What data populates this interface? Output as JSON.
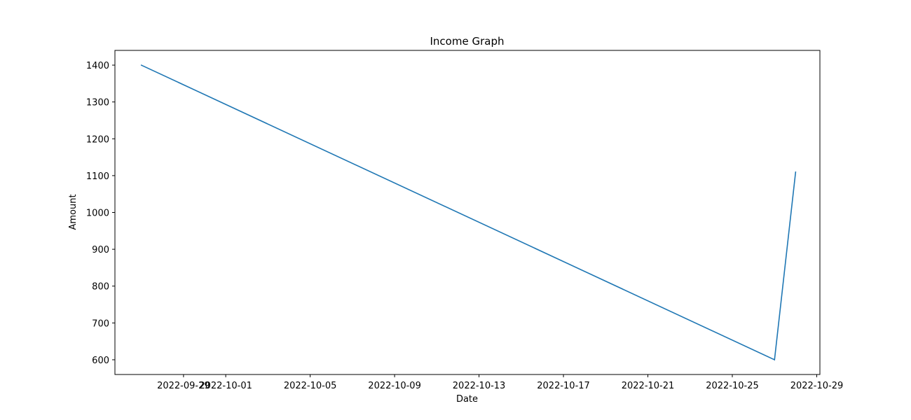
{
  "chart_data": {
    "type": "line",
    "title": "Income Graph",
    "xlabel": "Date",
    "ylabel": "Amount",
    "grid": false,
    "x_ticks": [
      "2022-09-29",
      "2022-10-01",
      "2022-10-05",
      "2022-10-09",
      "2022-10-13",
      "2022-10-17",
      "2022-10-21",
      "2022-10-25",
      "2022-10-29"
    ],
    "y_ticks": [
      "600",
      "700",
      "800",
      "900",
      "1000",
      "1100",
      "1200",
      "1300",
      "1400"
    ],
    "xlim": [
      "2022-09-26",
      "2022-10-29"
    ],
    "ylim": [
      560,
      1440
    ],
    "series": [
      {
        "color": "#1f77b4",
        "points": [
          {
            "x": "2022-09-27",
            "y": 1400
          },
          {
            "x": "2022-10-27",
            "y": 600
          },
          {
            "x": "2022-10-28",
            "y": 1110
          }
        ]
      }
    ]
  }
}
